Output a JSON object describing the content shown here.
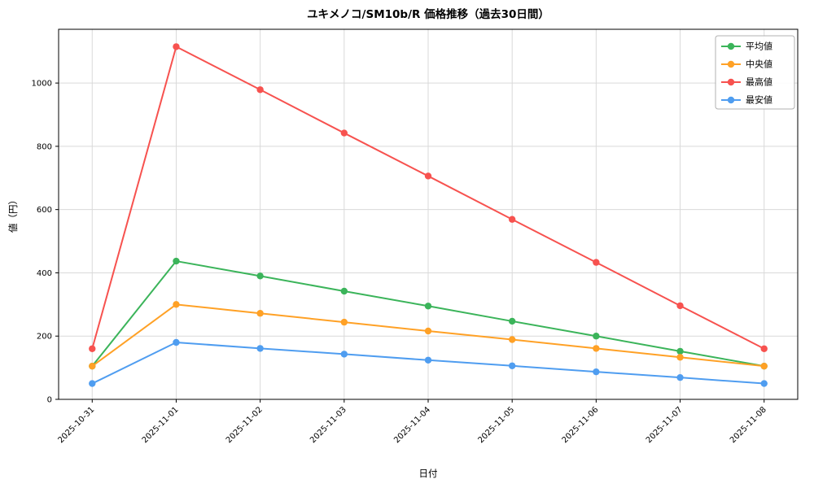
{
  "chart_data": {
    "type": "line",
    "title": "ユキメノコ/SM10b/R 価格推移（過去30日間）",
    "xlabel": "日付",
    "ylabel": "値（円）",
    "categories": [
      "2025-10-31",
      "2025-11-01",
      "2025-11-02",
      "2025-11-03",
      "2025-11-04",
      "2025-11-05",
      "2025-11-06",
      "2025-11-07",
      "2025-11-08"
    ],
    "yticks": [
      0,
      200,
      400,
      600,
      800,
      1000
    ],
    "ylim": [
      0,
      1170
    ],
    "grid": true,
    "legend_position": "top-right",
    "series": [
      {
        "key": "average",
        "name": "平均値",
        "color": "#3bb45a",
        "values": [
          105,
          437,
          390,
          342,
          295,
          247,
          200,
          152,
          105
        ]
      },
      {
        "key": "median",
        "name": "中央値",
        "color": "#ffa126",
        "values": [
          105,
          300,
          272,
          244,
          216,
          189,
          161,
          133,
          105
        ]
      },
      {
        "key": "max",
        "name": "最高値",
        "color": "#f7524f",
        "values": [
          160,
          1115,
          979,
          842,
          706,
          569,
          433,
          296,
          160
        ]
      },
      {
        "key": "min",
        "name": "最安値",
        "color": "#4f9df0",
        "values": [
          50,
          180,
          161,
          143,
          124,
          106,
          87,
          69,
          50
        ]
      }
    ]
  }
}
